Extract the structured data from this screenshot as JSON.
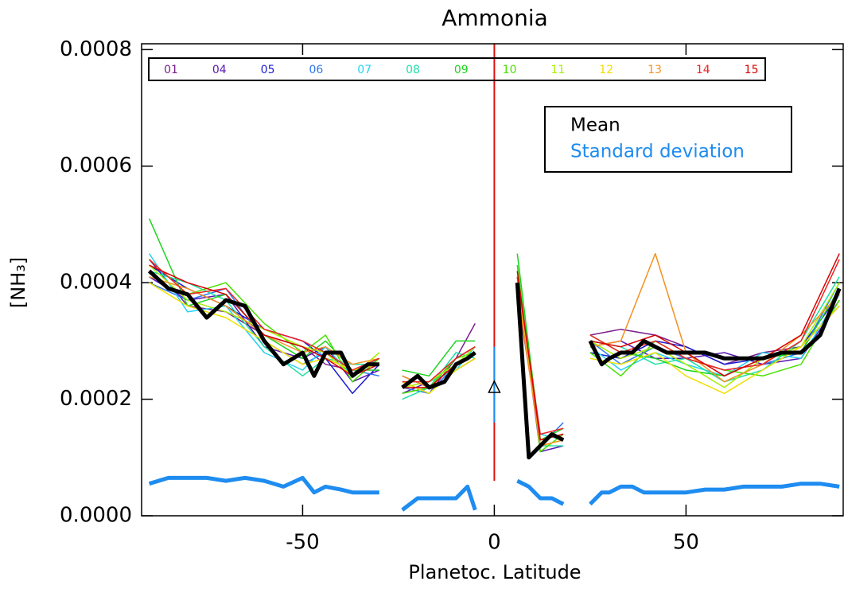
{
  "chart_data": {
    "type": "line",
    "title": "Ammonia",
    "x_label": "Planetoc. Latitude",
    "y_label": "[NH₃]",
    "xlim": [
      -92,
      91
    ],
    "ylim": [
      0,
      0.00081
    ],
    "xticks": [
      -50,
      0,
      50
    ],
    "yticks": [
      {
        "value": 0,
        "label": "0.0000"
      },
      0.0002,
      0.0004,
      0.0006,
      0.0008
    ],
    "series": [
      {
        "name": "01",
        "color": "#7a1e8c",
        "legend": "top",
        "line_width": 1.5,
        "x": [
          -90,
          -80,
          -70,
          -60,
          -50,
          -44,
          -37,
          -30,
          -27,
          -24,
          -17,
          -10,
          -5,
          0,
          6,
          12,
          18,
          21,
          25,
          33,
          42,
          50,
          60,
          70,
          80,
          90
        ],
        "values": [
          0.00044,
          0.00036,
          0.00035,
          0.00031,
          0.00029,
          0.00026,
          0.00025,
          0.00027,
          null,
          0.00023,
          0.00021,
          0.00027,
          0.00033,
          null,
          0.00038,
          0.00013,
          0.00014,
          null,
          0.00031,
          0.00032,
          0.00031,
          0.00029,
          0.00026,
          0.00028,
          0.00029,
          0.00036
        ]
      },
      {
        "name": "04",
        "color": "#5a18b0",
        "legend": "top",
        "line_width": 1.5,
        "x": [
          -90,
          -80,
          -70,
          -60,
          -50,
          -44,
          -37,
          -30,
          -27,
          -24,
          -17,
          -10,
          -5,
          0,
          6,
          12,
          18,
          21,
          25,
          33,
          42,
          50,
          60,
          70,
          80,
          90
        ],
        "values": [
          0.00041,
          0.00037,
          0.00038,
          0.00029,
          0.00027,
          0.00029,
          0.00023,
          0.00025,
          null,
          0.00021,
          0.00023,
          0.00025,
          0.00027,
          null,
          0.00041,
          0.00011,
          0.00012,
          null,
          0.00029,
          0.0003,
          0.00027,
          0.00027,
          0.00028,
          0.00026,
          0.00027,
          0.00037
        ]
      },
      {
        "name": "05",
        "color": "#1a1ad0",
        "legend": "top",
        "line_width": 1.5,
        "x": [
          -90,
          -80,
          -70,
          -60,
          -50,
          -44,
          -37,
          -30,
          -27,
          -24,
          -17,
          -10,
          -5,
          0,
          6,
          12,
          18,
          21,
          25,
          33,
          42,
          50,
          60,
          70,
          80,
          90
        ],
        "values": [
          0.00043,
          0.00039,
          0.00036,
          0.00032,
          0.0003,
          0.00027,
          0.00021,
          0.00026,
          null,
          0.00024,
          0.00022,
          0.00027,
          0.00029,
          null,
          0.00039,
          0.00013,
          0.00014,
          null,
          0.00028,
          0.00027,
          0.0003,
          0.00029,
          0.00026,
          0.00027,
          0.00029,
          0.00038
        ]
      },
      {
        "name": "06",
        "color": "#2f78f0",
        "legend": "top",
        "line_width": 1.5,
        "x": [
          -90,
          -80,
          -70,
          -60,
          -50,
          -44,
          -37,
          -30,
          -27,
          -24,
          -17,
          -10,
          -5,
          0,
          6,
          12,
          18,
          21,
          25,
          33,
          42,
          50,
          60,
          70,
          80,
          90
        ],
        "values": [
          0.0004,
          0.00037,
          0.00039,
          0.0003,
          0.00026,
          0.00028,
          0.00025,
          0.00024,
          null,
          0.00022,
          0.00021,
          0.00026,
          0.00028,
          null,
          0.0004,
          0.00012,
          0.00016,
          null,
          0.0003,
          0.00026,
          0.00029,
          0.00027,
          0.00025,
          0.00026,
          0.00028,
          0.0004
        ]
      },
      {
        "name": "07",
        "color": "#22d2f2",
        "legend": "top",
        "line_width": 1.5,
        "x": [
          -90,
          -80,
          -70,
          -60,
          -50,
          -44,
          -37,
          -30,
          -27,
          -24,
          -17,
          -10,
          -5,
          0,
          6,
          12,
          18,
          21,
          25,
          33,
          42,
          50,
          60,
          70,
          80,
          90
        ],
        "values": [
          0.00045,
          0.00035,
          0.00036,
          0.00028,
          0.00025,
          0.00029,
          0.00024,
          0.00027,
          null,
          0.00023,
          0.00023,
          0.00025,
          0.00029,
          null,
          0.00042,
          0.00014,
          0.00013,
          null,
          0.00029,
          0.00025,
          0.00028,
          0.00026,
          0.00024,
          0.00028,
          0.00027,
          0.00038
        ]
      },
      {
        "name": "08",
        "color": "#1fe0a6",
        "legend": "top",
        "line_width": 1.5,
        "x": [
          -90,
          -80,
          -70,
          -60,
          -50,
          -44,
          -37,
          -30,
          -27,
          -24,
          -17,
          -10,
          -5,
          0,
          6,
          12,
          18,
          21,
          25,
          33,
          42,
          50,
          60,
          70,
          80,
          90
        ],
        "values": [
          0.00042,
          0.0004,
          0.00037,
          0.00029,
          0.00024,
          0.00027,
          0.00026,
          0.00026,
          null,
          0.0002,
          0.00022,
          0.00028,
          0.00027,
          null,
          0.00043,
          0.00012,
          0.00012,
          null,
          0.0003,
          0.00029,
          0.00026,
          0.00027,
          0.00023,
          0.00025,
          0.0003,
          0.00041
        ]
      },
      {
        "name": "09",
        "color": "#1ed41e",
        "legend": "top",
        "line_width": 1.5,
        "x": [
          -90,
          -80,
          -70,
          -60,
          -50,
          -44,
          -37,
          -30,
          -27,
          -24,
          -17,
          -10,
          -5,
          0,
          6,
          12,
          18,
          21,
          25,
          33,
          42,
          50,
          60,
          70,
          80,
          90
        ],
        "values": [
          0.00051,
          0.00036,
          0.00038,
          0.00031,
          0.00027,
          0.0003,
          0.00025,
          0.00025,
          null,
          0.00025,
          0.00024,
          0.0003,
          0.0003,
          null,
          0.00045,
          0.00013,
          0.00015,
          null,
          0.00031,
          0.00028,
          0.00027,
          0.00025,
          0.00024,
          0.00027,
          0.00028,
          0.00039
        ]
      },
      {
        "name": "10",
        "color": "#48e000",
        "legend": "top",
        "line_width": 1.5,
        "x": [
          -90,
          -80,
          -70,
          -60,
          -50,
          -44,
          -37,
          -30,
          -27,
          -24,
          -17,
          -10,
          -5,
          0,
          6,
          12,
          18,
          21,
          25,
          33,
          42,
          50,
          60,
          70,
          80,
          90
        ],
        "values": [
          0.00044,
          0.00038,
          0.0004,
          0.00033,
          0.00028,
          0.00031,
          0.00023,
          0.00027,
          null,
          0.00021,
          0.00022,
          0.00027,
          0.00028,
          null,
          0.00043,
          0.00011,
          0.00014,
          null,
          0.00028,
          0.00024,
          0.0003,
          0.00027,
          0.00025,
          0.00024,
          0.00026,
          0.00037
        ]
      },
      {
        "name": "11",
        "color": "#a8f000",
        "legend": "top",
        "line_width": 1.5,
        "x": [
          -90,
          -80,
          -70,
          -60,
          -50,
          -44,
          -37,
          -30,
          -27,
          -24,
          -17,
          -10,
          -5,
          0,
          6,
          12,
          18,
          21,
          25,
          33,
          42,
          50,
          60,
          70,
          80,
          90
        ],
        "values": [
          0.00043,
          0.00037,
          0.00035,
          0.00032,
          0.00029,
          0.00028,
          0.00024,
          0.00028,
          null,
          0.00022,
          0.00023,
          0.00026,
          0.00029,
          null,
          0.00041,
          0.00012,
          0.00013,
          null,
          0.0003,
          0.00027,
          0.00029,
          0.00026,
          0.00022,
          0.00027,
          0.00029,
          0.0004
        ]
      },
      {
        "name": "12",
        "color": "#f0e000",
        "legend": "top",
        "line_width": 1.5,
        "x": [
          -90,
          -80,
          -70,
          -60,
          -50,
          -44,
          -37,
          -30,
          -27,
          -24,
          -17,
          -10,
          -5,
          0,
          6,
          12,
          18,
          21,
          25,
          33,
          42,
          50,
          60,
          70,
          80,
          90
        ],
        "values": [
          0.0004,
          0.00036,
          0.00034,
          0.0003,
          0.00026,
          0.00027,
          0.00025,
          0.00026,
          null,
          0.00023,
          0.00021,
          0.00025,
          0.00027,
          null,
          0.0004,
          0.00013,
          0.00014,
          null,
          0.00027,
          0.00026,
          0.00028,
          0.00024,
          0.00021,
          0.00025,
          0.00029,
          0.00036
        ]
      },
      {
        "name": "13",
        "color": "#f59020",
        "legend": "top",
        "line_width": 1.5,
        "x": [
          -90,
          -80,
          -70,
          -60,
          -50,
          -44,
          -37,
          -30,
          -27,
          -24,
          -17,
          -10,
          -5,
          0,
          6,
          12,
          18,
          21,
          25,
          33,
          42,
          50,
          60,
          70,
          80,
          90
        ],
        "values": [
          0.00041,
          0.00039,
          0.00036,
          0.00031,
          0.00028,
          0.00029,
          0.00026,
          0.00027,
          null,
          0.00024,
          0.00022,
          0.00026,
          0.00028,
          null,
          0.00039,
          0.00012,
          0.00013,
          null,
          0.00029,
          0.0003,
          0.00045,
          0.00028,
          0.00023,
          0.00026,
          0.00031,
          0.00038
        ]
      },
      {
        "name": "14",
        "color": "#f02222",
        "legend": "top",
        "line_width": 1.5,
        "x": [
          -90,
          -80,
          -70,
          -60,
          -50,
          -44,
          -37,
          -30,
          -27,
          -24,
          -17,
          -10,
          -5,
          0,
          6,
          12,
          18,
          21,
          25,
          33,
          42,
          50,
          60,
          70,
          80,
          90
        ],
        "values": [
          0.00044,
          0.00038,
          0.00039,
          0.00032,
          0.0003,
          0.00028,
          0.00025,
          0.00027,
          null,
          0.00023,
          0.00023,
          0.00027,
          0.00029,
          null,
          0.00041,
          0.00014,
          0.00015,
          null,
          0.00031,
          0.00028,
          0.0003,
          0.00027,
          0.00025,
          0.00026,
          0.0003,
          0.00044
        ]
      },
      {
        "name": "15",
        "color": "#d80000",
        "legend": "top",
        "line_width": 1.5,
        "x": [
          -90,
          -80,
          -70,
          -60,
          -50,
          -44,
          -37,
          -30,
          -27,
          -24,
          -17,
          -10,
          -5,
          0,
          6,
          12,
          18,
          21,
          25,
          33,
          42,
          50,
          60,
          70,
          80,
          90
        ],
        "values": [
          0.00043,
          0.0004,
          0.00038,
          0.00031,
          0.00029,
          0.00027,
          0.00024,
          0.00026,
          null,
          0.00022,
          0.00022,
          0.00026,
          0.00028,
          null,
          0.00042,
          0.00013,
          0.00014,
          null,
          0.0003,
          0.00029,
          0.00031,
          0.00028,
          0.00024,
          0.00027,
          0.00031,
          0.00045
        ]
      },
      {
        "name": "Mean",
        "color": "#000000",
        "legend": "upper right",
        "line_width": 5,
        "x": [
          -90,
          -85,
          -80,
          -75,
          -70,
          -65,
          -60,
          -55,
          -50,
          -47,
          -44,
          -40,
          -37,
          -33,
          -30,
          -27,
          -24,
          -20,
          -17,
          -13,
          -10,
          -7,
          -5,
          0,
          6,
          9,
          12,
          15,
          18,
          21,
          25,
          28,
          30,
          33,
          36,
          39,
          42,
          45,
          50,
          55,
          60,
          65,
          70,
          75,
          80,
          85,
          90
        ],
        "values": [
          0.00042,
          0.00039,
          0.00038,
          0.00034,
          0.00037,
          0.00036,
          0.0003,
          0.00026,
          0.00028,
          0.00024,
          0.00028,
          0.00028,
          0.00024,
          0.00026,
          0.00026,
          null,
          0.00022,
          0.00024,
          0.00022,
          0.00023,
          0.00026,
          0.00027,
          0.00028,
          null,
          0.0004,
          0.0001,
          0.00012,
          0.00014,
          0.00013,
          null,
          0.0003,
          0.00026,
          0.00027,
          0.00028,
          0.00028,
          0.0003,
          0.00029,
          0.00028,
          0.00028,
          0.00028,
          0.00027,
          0.00027,
          0.00027,
          0.00028,
          0.00028,
          0.00031,
          0.00039
        ]
      },
      {
        "name": "Standard deviation",
        "color": "#1e8cf0",
        "legend": "upper right",
        "line_width": 5,
        "x": [
          -90,
          -85,
          -80,
          -75,
          -70,
          -65,
          -60,
          -55,
          -50,
          -47,
          -44,
          -40,
          -37,
          -33,
          -30,
          -27,
          -24,
          -20,
          -17,
          -13,
          -10,
          -7,
          -5,
          0,
          6,
          9,
          12,
          15,
          18,
          21,
          25,
          28,
          30,
          33,
          36,
          39,
          42,
          45,
          50,
          55,
          60,
          65,
          70,
          75,
          80,
          85,
          90
        ],
        "values": [
          5.5e-05,
          6.5e-05,
          6.5e-05,
          6.5e-05,
          6e-05,
          6.5e-05,
          6e-05,
          5e-05,
          6.5e-05,
          4e-05,
          5e-05,
          4.5e-05,
          4e-05,
          4e-05,
          4e-05,
          null,
          1e-05,
          3e-05,
          3e-05,
          3e-05,
          3e-05,
          5e-05,
          1e-05,
          null,
          6e-05,
          5e-05,
          3e-05,
          3e-05,
          2e-05,
          null,
          2e-05,
          4e-05,
          4e-05,
          5e-05,
          5e-05,
          4e-05,
          4e-05,
          4e-05,
          4e-05,
          4.5e-05,
          4.5e-05,
          5e-05,
          5e-05,
          5e-05,
          5.5e-05,
          5.5e-05,
          5e-05
        ]
      }
    ],
    "equator": {
      "x": 0,
      "ymin": 6e-05,
      "color": "#e01010",
      "error": [
        0.00016,
        0.00029
      ],
      "error_color": "#1e8cf0",
      "marker_y": 0.00022
    }
  }
}
